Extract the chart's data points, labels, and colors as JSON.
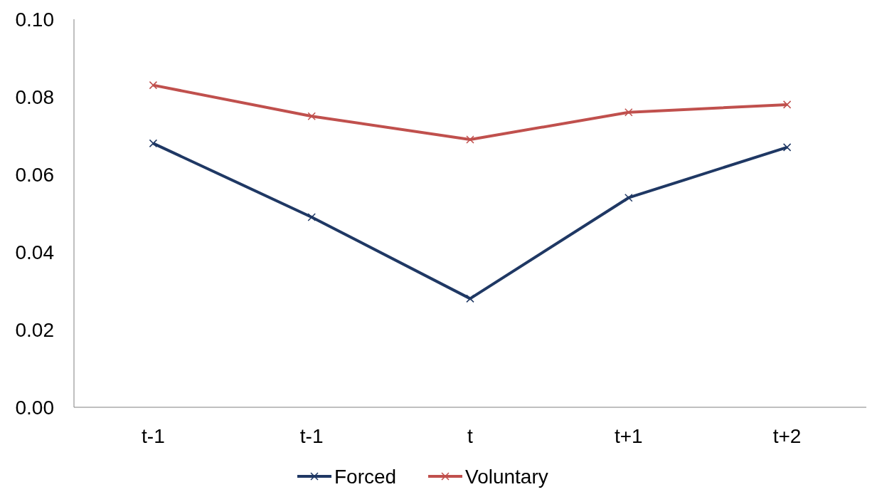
{
  "chart_data": {
    "type": "line",
    "categories": [
      "t-1",
      "t-1",
      "t",
      "t+1",
      "t+2"
    ],
    "series": [
      {
        "name": "Forced",
        "color": "#1f3864",
        "values": [
          0.068,
          0.049,
          0.028,
          0.054,
          0.067
        ]
      },
      {
        "name": "Voluntary",
        "color": "#c0504d",
        "values": [
          0.083,
          0.075,
          0.069,
          0.076,
          0.078
        ]
      }
    ],
    "ylim": [
      0,
      0.1
    ],
    "yticks": [
      {
        "value": 0,
        "label": "0.00"
      },
      {
        "value": 0.02,
        "label": "0.02"
      },
      {
        "value": 0.04,
        "label": "0.04"
      },
      {
        "value": 0.06,
        "label": "0.06"
      },
      {
        "value": 0.08,
        "label": "0.08"
      },
      {
        "value": 0.1,
        "label": "0.10"
      }
    ],
    "grid": false,
    "legend": "bottom",
    "marker": "cross",
    "line_style": "solid"
  }
}
